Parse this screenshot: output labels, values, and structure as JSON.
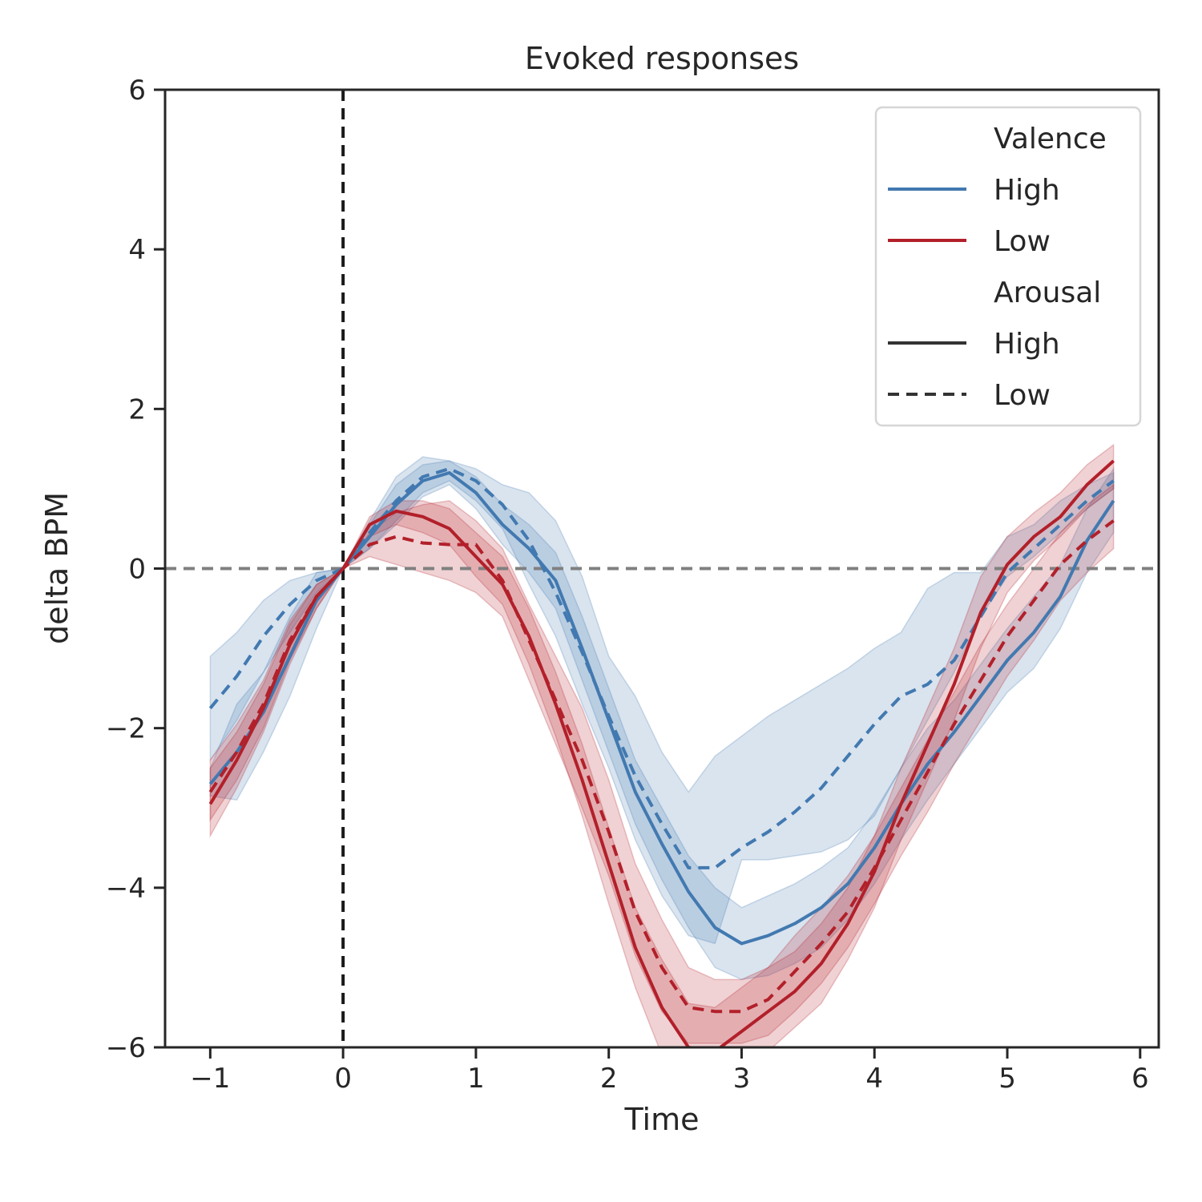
{
  "chart_data": {
    "type": "line",
    "title": "Evoked responses",
    "xlabel": "Time",
    "ylabel": "delta BPM",
    "xlim": [
      -1.34,
      6.14
    ],
    "ylim": [
      -6,
      6
    ],
    "xticks": [
      -1,
      0,
      1,
      2,
      3,
      4,
      5,
      6
    ],
    "xtick_labels": [
      "−1",
      "0",
      "1",
      "2",
      "3",
      "4",
      "5",
      "6"
    ],
    "yticks": [
      -6,
      -4,
      -2,
      0,
      2,
      4,
      6
    ],
    "ytick_labels": [
      "−6",
      "−4",
      "−2",
      "0",
      "2",
      "4",
      "6"
    ],
    "grid": false,
    "reference_lines": [
      {
        "orientation": "vertical",
        "value": 0,
        "color": "#1a1a1a",
        "style": "dashed"
      },
      {
        "orientation": "horizontal",
        "value": 0,
        "color": "#808080",
        "style": "dashed"
      }
    ],
    "colors": {
      "high_valence": "#4279b0",
      "low_valence": "#b2202a",
      "arousal_key": "#333333"
    },
    "legend": {
      "placement": "top-right",
      "entries": [
        {
          "label": "Valence",
          "kind": "header"
        },
        {
          "label": "High",
          "kind": "line",
          "color": "#4279b0",
          "style": "solid"
        },
        {
          "label": "Low",
          "kind": "line",
          "color": "#b2202a",
          "style": "solid"
        },
        {
          "label": "Arousal",
          "kind": "header"
        },
        {
          "label": "High",
          "kind": "line",
          "color": "#333333",
          "style": "solid"
        },
        {
          "label": "Low",
          "kind": "line",
          "color": "#333333",
          "style": "dashed"
        }
      ]
    },
    "x": [
      -1.0,
      -0.8,
      -0.6,
      -0.4,
      -0.2,
      0.0,
      0.2,
      0.4,
      0.6,
      0.8,
      1.0,
      1.2,
      1.4,
      1.6,
      1.8,
      2.0,
      2.2,
      2.4,
      2.6,
      2.8,
      3.0,
      3.2,
      3.4,
      3.6,
      3.8,
      4.0,
      4.2,
      4.4,
      4.6,
      4.8,
      5.0,
      5.2,
      5.4,
      5.6,
      5.8
    ],
    "series": [
      {
        "valence": "High",
        "arousal": "High",
        "color": "#4279b0",
        "style": "solid",
        "values": [
          -2.7,
          -2.3,
          -1.8,
          -1.1,
          -0.4,
          0.0,
          0.4,
          0.8,
          1.1,
          1.2,
          0.95,
          0.55,
          0.25,
          -0.15,
          -1.0,
          -1.9,
          -2.8,
          -3.45,
          -4.05,
          -4.5,
          -4.7,
          -4.6,
          -4.45,
          -4.25,
          -3.95,
          -3.5,
          -2.95,
          -2.45,
          -2.05,
          -1.6,
          -1.15,
          -0.8,
          -0.35,
          0.35,
          0.85
        ],
        "ci_lower": [
          -2.85,
          -2.9,
          -2.3,
          -1.6,
          -0.75,
          0.0,
          0.25,
          0.55,
          0.9,
          1.05,
          0.75,
          0.3,
          -0.05,
          -0.5,
          -1.4,
          -2.3,
          -3.2,
          -3.9,
          -4.5,
          -5.0,
          -5.15,
          -5.1,
          -4.95,
          -4.75,
          -4.4,
          -3.95,
          -3.4,
          -2.9,
          -2.45,
          -2.0,
          -1.55,
          -1.25,
          -0.75,
          -0.05,
          0.45
        ],
        "ci_upper": [
          -2.5,
          -1.7,
          -1.3,
          -0.6,
          -0.05,
          0.0,
          0.55,
          1.05,
          1.3,
          1.35,
          1.15,
          0.8,
          0.55,
          0.2,
          -0.6,
          -1.5,
          -2.4,
          -3.0,
          -3.6,
          -4.0,
          -4.25,
          -4.1,
          -3.95,
          -3.75,
          -3.5,
          -3.05,
          -2.5,
          -2.0,
          -1.65,
          -1.2,
          -0.75,
          -0.35,
          0.05,
          0.75,
          1.25
        ]
      },
      {
        "valence": "High",
        "arousal": "Low",
        "color": "#4279b0",
        "style": "dashed",
        "values": [
          -1.75,
          -1.35,
          -0.85,
          -0.45,
          -0.15,
          0.0,
          0.45,
          0.85,
          1.15,
          1.25,
          1.1,
          0.8,
          0.35,
          -0.3,
          -1.05,
          -1.85,
          -2.6,
          -3.2,
          -3.75,
          -3.75,
          -3.5,
          -3.3,
          -3.05,
          -2.75,
          -2.35,
          -1.95,
          -1.6,
          -1.45,
          -1.15,
          -0.6,
          -0.05,
          0.25,
          0.55,
          0.85,
          1.1
        ],
        "ci_lower": [
          -2.4,
          -1.9,
          -1.3,
          -0.8,
          -0.3,
          0.0,
          0.25,
          0.6,
          0.95,
          1.1,
          0.85,
          0.5,
          -0.2,
          -0.85,
          -1.7,
          -2.5,
          -3.4,
          -4.1,
          -4.6,
          -4.7,
          -3.65,
          -3.65,
          -3.6,
          -3.55,
          -3.4,
          -3.1,
          -2.5,
          -1.9,
          -1.3,
          -0.6,
          -0.1,
          0.15,
          0.45,
          0.75,
          1.0
        ],
        "ci_upper": [
          -1.1,
          -0.8,
          -0.4,
          -0.15,
          -0.05,
          0.0,
          0.6,
          1.15,
          1.4,
          1.35,
          1.25,
          1.05,
          0.95,
          0.6,
          -0.1,
          -1.1,
          -1.6,
          -2.3,
          -2.8,
          -2.35,
          -2.1,
          -1.85,
          -1.65,
          -1.45,
          -1.25,
          -1.0,
          -0.8,
          -0.25,
          -0.05,
          -0.05,
          0.4,
          0.55,
          0.85,
          1.05,
          1.2
        ]
      },
      {
        "valence": "Low",
        "arousal": "High",
        "color": "#b2202a",
        "style": "solid",
        "values": [
          -2.95,
          -2.4,
          -1.75,
          -0.95,
          -0.35,
          0.0,
          0.55,
          0.72,
          0.65,
          0.5,
          0.15,
          -0.2,
          -0.85,
          -1.7,
          -2.65,
          -3.7,
          -4.75,
          -5.5,
          -6.0,
          -6.05,
          -5.8,
          -5.55,
          -5.3,
          -4.95,
          -4.45,
          -3.8,
          -2.95,
          -2.2,
          -1.45,
          -0.55,
          0.05,
          0.4,
          0.65,
          1.05,
          1.35
        ],
        "ci_lower": [
          -3.35,
          -2.75,
          -2.05,
          -1.2,
          -0.5,
          0.0,
          0.4,
          0.55,
          0.45,
          0.3,
          -0.1,
          -0.45,
          -1.2,
          -2.1,
          -3.1,
          -4.2,
          -5.25,
          -6.1,
          -6.6,
          -6.6,
          -6.35,
          -6.05,
          -5.75,
          -5.45,
          -4.9,
          -4.25,
          -3.4,
          -2.65,
          -1.9,
          -1.0,
          -0.3,
          0.1,
          0.4,
          0.75,
          1.0
        ],
        "ci_upper": [
          -2.5,
          -2.05,
          -1.45,
          -0.7,
          -0.2,
          0.0,
          0.65,
          0.85,
          0.85,
          0.75,
          0.45,
          0.15,
          -0.5,
          -1.3,
          -2.2,
          -3.25,
          -4.25,
          -4.9,
          -5.45,
          -5.5,
          -5.25,
          -5.0,
          -4.8,
          -4.45,
          -4.0,
          -3.35,
          -2.5,
          -1.75,
          -1.0,
          -0.1,
          0.4,
          0.7,
          0.95,
          1.3,
          1.55
        ]
      },
      {
        "valence": "Low",
        "arousal": "Low",
        "color": "#b2202a",
        "style": "dashed",
        "values": [
          -2.8,
          -2.3,
          -1.7,
          -0.9,
          -0.35,
          0.0,
          0.3,
          0.4,
          0.32,
          0.3,
          0.3,
          -0.15,
          -0.9,
          -1.65,
          -2.4,
          -3.3,
          -4.3,
          -5.0,
          -5.5,
          -5.55,
          -5.55,
          -5.4,
          -5.05,
          -4.7,
          -4.3,
          -3.75,
          -3.15,
          -2.55,
          -1.95,
          -1.4,
          -0.85,
          -0.4,
          0.05,
          0.35,
          0.6
        ],
        "ci_lower": [
          -3.15,
          -2.65,
          -2.0,
          -1.15,
          -0.5,
          0.0,
          0.15,
          0.05,
          -0.05,
          -0.15,
          -0.3,
          -0.6,
          -1.4,
          -2.2,
          -3.0,
          -3.85,
          -4.85,
          -5.55,
          -5.95,
          -5.95,
          -5.95,
          -5.85,
          -5.55,
          -5.2,
          -4.75,
          -4.2,
          -3.6,
          -3.05,
          -2.45,
          -1.9,
          -1.35,
          -0.9,
          -0.4,
          -0.05,
          0.25
        ],
        "ci_upper": [
          -2.4,
          -1.95,
          -1.4,
          -0.65,
          -0.2,
          0.0,
          0.45,
          0.7,
          0.8,
          0.85,
          0.6,
          0.25,
          -0.45,
          -1.1,
          -1.75,
          -2.65,
          -3.7,
          -4.4,
          -5.0,
          -5.15,
          -5.15,
          -5.0,
          -4.6,
          -4.25,
          -3.85,
          -3.35,
          -2.75,
          -2.15,
          -1.55,
          -0.95,
          -0.45,
          0.0,
          0.45,
          0.8,
          1.05
        ]
      }
    ]
  }
}
